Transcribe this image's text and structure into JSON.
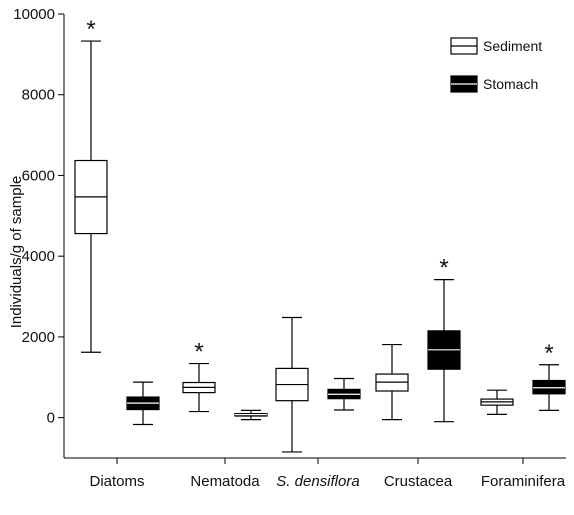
{
  "chart_data": {
    "type": "boxplot",
    "ylabel": "Individuals/g of sample",
    "xlabel": "",
    "ylim": [
      -1000,
      10000
    ],
    "yticks": [
      0,
      2000,
      4000,
      6000,
      8000,
      10000
    ],
    "categories": [
      "Diatoms",
      "Nematoda",
      "S. densiflora",
      "Crustacea",
      "Foraminifera"
    ],
    "italic_categories": [
      "S. densiflora"
    ],
    "legend_position": "top-right",
    "grid": false,
    "significance_marker": "*",
    "series": [
      {
        "name": "Sediment",
        "color": "#ffffff",
        "boxes": [
          {
            "min": 1620,
            "q1": 4560,
            "median": 5470,
            "q3": 6370,
            "max": 9330,
            "significant": true
          },
          {
            "min": 150,
            "q1": 620,
            "median": 750,
            "q3": 870,
            "max": 1340,
            "significant": true
          },
          {
            "min": -850,
            "q1": 420,
            "median": 820,
            "q3": 1220,
            "max": 2480,
            "significant": false
          },
          {
            "min": -50,
            "q1": 660,
            "median": 880,
            "q3": 1080,
            "max": 1810,
            "significant": false
          },
          {
            "min": 80,
            "q1": 310,
            "median": 390,
            "q3": 460,
            "max": 680,
            "significant": false
          }
        ]
      },
      {
        "name": "Stomach",
        "color": "#000000",
        "boxes": [
          {
            "min": -170,
            "q1": 200,
            "median": 360,
            "q3": 510,
            "max": 880,
            "significant": false
          },
          {
            "min": -50,
            "q1": 40,
            "median": 75,
            "q3": 100,
            "max": 180,
            "significant": false
          },
          {
            "min": 190,
            "q1": 470,
            "median": 580,
            "q3": 700,
            "max": 970,
            "significant": false
          },
          {
            "min": -100,
            "q1": 1200,
            "median": 1680,
            "q3": 2150,
            "max": 3420,
            "significant": true
          },
          {
            "min": 180,
            "q1": 590,
            "median": 740,
            "q3": 920,
            "max": 1310,
            "significant": true
          }
        ]
      }
    ]
  }
}
